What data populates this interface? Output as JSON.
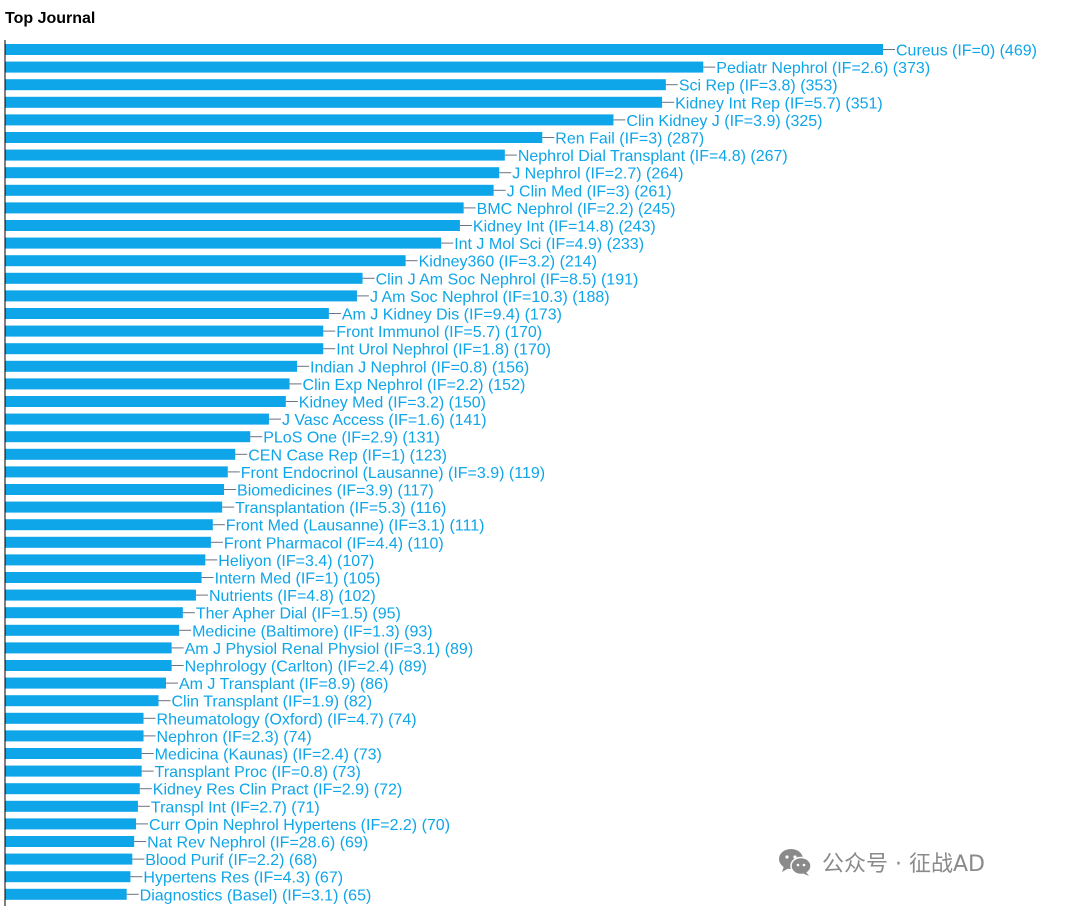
{
  "colors": {
    "bar": "#0ea5e9",
    "label": "#0ea5e9",
    "leader": "#6b7280",
    "axis": "#000000",
    "watermark": "#8a8a8a"
  },
  "watermark": {
    "text": "公众号 · 征战AD",
    "icon": "wechat-icon"
  },
  "chart_data": {
    "type": "bar",
    "orientation": "horizontal",
    "title": "Top Journal",
    "xlabel": "",
    "ylabel": "",
    "xlim": [
      0,
      469
    ],
    "grid": false,
    "legend": "none",
    "categories": [
      "Cureus (IF=0)",
      "Pediatr Nephrol (IF=2.6)",
      "Sci Rep (IF=3.8)",
      "Kidney Int Rep (IF=5.7)",
      "Clin Kidney J (IF=3.9)",
      "Ren Fail (IF=3)",
      "Nephrol Dial Transplant (IF=4.8)",
      "J Nephrol (IF=2.7)",
      "J Clin Med (IF=3)",
      "BMC Nephrol (IF=2.2)",
      "Kidney Int (IF=14.8)",
      "Int J Mol Sci (IF=4.9)",
      "Kidney360 (IF=3.2)",
      "Clin J Am Soc Nephrol (IF=8.5)",
      "J Am Soc Nephrol (IF=10.3)",
      "Am J Kidney Dis (IF=9.4)",
      "Front Immunol (IF=5.7)",
      "Int Urol Nephrol (IF=1.8)",
      "Indian J Nephrol (IF=0.8)",
      "Clin Exp Nephrol (IF=2.2)",
      "Kidney Med (IF=3.2)",
      "J Vasc Access (IF=1.6)",
      "PLoS One (IF=2.9)",
      "CEN Case Rep (IF=1)",
      "Front Endocrinol (Lausanne) (IF=3.9)",
      "Biomedicines (IF=3.9)",
      "Transplantation (IF=5.3)",
      "Front Med (Lausanne) (IF=3.1)",
      "Front Pharmacol (IF=4.4)",
      "Heliyon (IF=3.4)",
      "Intern Med (IF=1)",
      "Nutrients (IF=4.8)",
      "Ther Apher Dial (IF=1.5)",
      "Medicine (Baltimore) (IF=1.3)",
      "Am J Physiol Renal Physiol (IF=3.1)",
      "Nephrology (Carlton) (IF=2.4)",
      "Am J Transplant (IF=8.9)",
      "Clin Transplant (IF=1.9)",
      "Rheumatology (Oxford) (IF=4.7)",
      "Nephron (IF=2.3)",
      "Medicina (Kaunas) (IF=2.4)",
      "Transplant Proc (IF=0.8)",
      "Kidney Res Clin Pract (IF=2.9)",
      "Transpl Int (IF=2.7)",
      "Curr Opin Nephrol Hypertens (IF=2.2)",
      "Nat Rev Nephrol (IF=28.6)",
      "Blood Purif (IF=2.2)",
      "Hypertens Res (IF=4.3)",
      "Diagnostics (Basel) (IF=3.1)"
    ],
    "values": [
      469,
      373,
      353,
      351,
      325,
      287,
      267,
      264,
      261,
      245,
      243,
      233,
      214,
      191,
      188,
      173,
      170,
      170,
      156,
      152,
      150,
      141,
      131,
      123,
      119,
      117,
      116,
      111,
      110,
      107,
      105,
      102,
      95,
      93,
      89,
      89,
      86,
      82,
      74,
      74,
      73,
      73,
      72,
      71,
      70,
      69,
      68,
      67,
      65
    ],
    "labels": [
      "Cureus (IF=0) (469)",
      "Pediatr Nephrol (IF=2.6) (373)",
      "Sci Rep (IF=3.8) (353)",
      "Kidney Int Rep (IF=5.7) (351)",
      "Clin Kidney J (IF=3.9) (325)",
      "Ren Fail (IF=3) (287)",
      "Nephrol Dial Transplant (IF=4.8) (267)",
      "J Nephrol (IF=2.7) (264)",
      "J Clin Med (IF=3) (261)",
      "BMC Nephrol (IF=2.2) (245)",
      "Kidney Int (IF=14.8) (243)",
      "Int J Mol Sci (IF=4.9) (233)",
      "Kidney360 (IF=3.2) (214)",
      "Clin J Am Soc Nephrol (IF=8.5) (191)",
      "J Am Soc Nephrol (IF=10.3) (188)",
      "Am J Kidney Dis (IF=9.4) (173)",
      "Front Immunol (IF=5.7) (170)",
      "Int Urol Nephrol (IF=1.8) (170)",
      "Indian J Nephrol (IF=0.8) (156)",
      "Clin Exp Nephrol (IF=2.2) (152)",
      "Kidney Med (IF=3.2) (150)",
      "J Vasc Access (IF=1.6) (141)",
      "PLoS One (IF=2.9) (131)",
      "CEN Case Rep (IF=1) (123)",
      "Front Endocrinol (Lausanne) (IF=3.9) (119)",
      "Biomedicines (IF=3.9) (117)",
      "Transplantation (IF=5.3) (116)",
      "Front Med (Lausanne) (IF=3.1) (111)",
      "Front Pharmacol (IF=4.4) (110)",
      "Heliyon (IF=3.4) (107)",
      "Intern Med (IF=1) (105)",
      "Nutrients (IF=4.8) (102)",
      "Ther Apher Dial (IF=1.5) (95)",
      "Medicine (Baltimore) (IF=1.3) (93)",
      "Am J Physiol Renal Physiol (IF=3.1) (89)",
      "Nephrology (Carlton) (IF=2.4) (89)",
      "Am J Transplant (IF=8.9) (86)",
      "Clin Transplant (IF=1.9) (82)",
      "Rheumatology (Oxford) (IF=4.7) (74)",
      "Nephron (IF=2.3) (74)",
      "Medicina (Kaunas) (IF=2.4) (73)",
      "Transplant Proc (IF=0.8) (73)",
      "Kidney Res Clin Pract (IF=2.9) (72)",
      "Transpl Int (IF=2.7) (71)",
      "Curr Opin Nephrol Hypertens (IF=2.2) (70)",
      "Nat Rev Nephrol (IF=28.6) (69)",
      "Blood Purif (IF=2.2) (68)",
      "Hypertens Res (IF=4.3) (67)",
      "Diagnostics (Basel) (IF=3.1) (65)"
    ]
  }
}
